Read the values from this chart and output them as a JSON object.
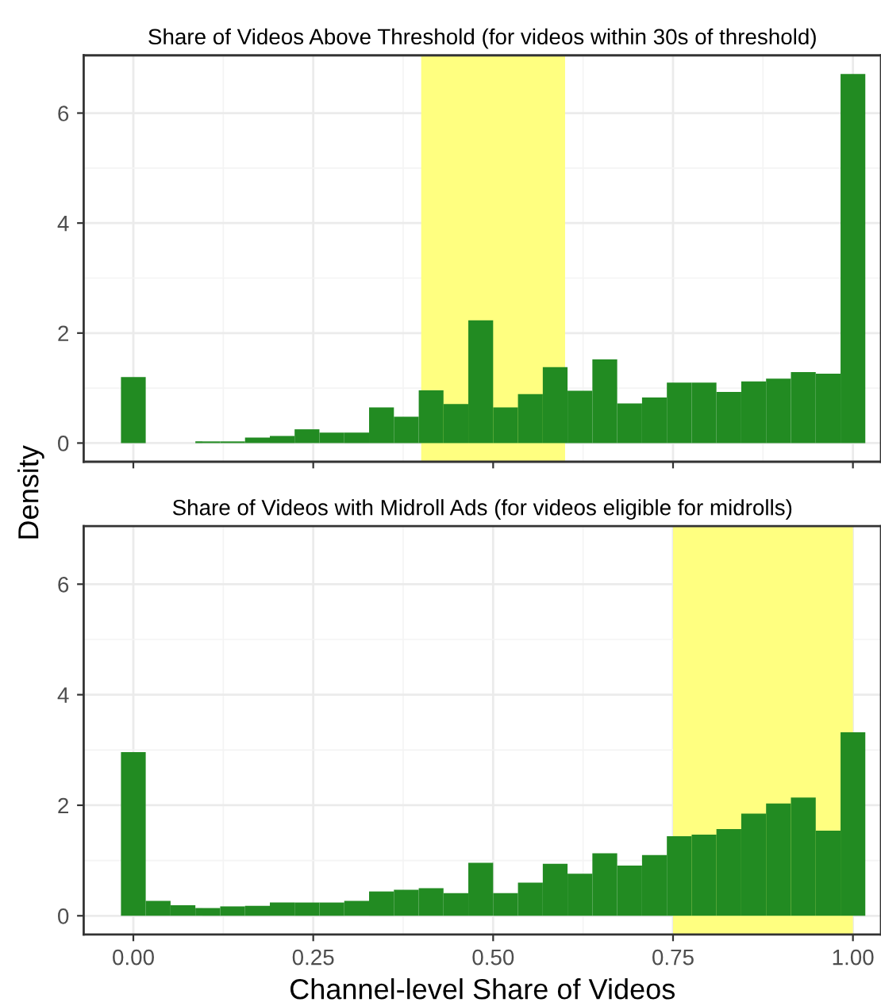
{
  "chart_data": [
    {
      "type": "histogram",
      "title": "Share of Videos Above Threshold (for videos within 30s of threshold)",
      "ylabel": "Density",
      "bins": [
        -0.0172,
        0.0172,
        0.0517,
        0.0862,
        0.1207,
        0.1552,
        0.1897,
        0.2241,
        0.2586,
        0.2931,
        0.3276,
        0.3621,
        0.3966,
        0.431,
        0.4655,
        0.5,
        0.5345,
        0.569,
        0.6034,
        0.6379,
        0.6724,
        0.7069,
        0.7414,
        0.7759,
        0.8103,
        0.8448,
        0.8793,
        0.9138,
        0.9483,
        0.9828,
        1.0172
      ],
      "values": [
        1.2,
        0,
        0,
        0.03,
        0.03,
        0.1,
        0.13,
        0.25,
        0.19,
        0.19,
        0.65,
        0.48,
        0.96,
        0.71,
        2.23,
        0.65,
        0.89,
        1.38,
        0.95,
        1.52,
        0.72,
        0.83,
        1.1,
        1.1,
        0.93,
        1.12,
        1.17,
        1.29,
        1.26,
        6.71
      ],
      "color": "#228b22",
      "bands": [
        {
          "axis": "x",
          "from": 0.4,
          "to": 0.6,
          "color": "#ffff80"
        }
      ],
      "xlim": [
        -0.069,
        1.039
      ],
      "ylim": [
        -0.34,
        7.05
      ],
      "xticks": [
        {
          "value": 0,
          "label": null
        },
        {
          "value": 0.25,
          "label": null
        },
        {
          "value": 0.5,
          "label": null
        },
        {
          "value": 0.75,
          "label": null
        },
        {
          "value": 1,
          "label": null
        }
      ],
      "yticks": [
        0,
        2,
        4,
        6
      ],
      "tick_labels": "y",
      "grid": true
    },
    {
      "type": "histogram",
      "title": "Share of Videos with Midroll Ads (for videos eligible for midrolls)",
      "xlabel": "Channel-level Share of Videos",
      "bins": [
        -0.0172,
        0.0172,
        0.0517,
        0.0862,
        0.1207,
        0.1552,
        0.1897,
        0.2241,
        0.2586,
        0.2931,
        0.3276,
        0.3621,
        0.3966,
        0.431,
        0.4655,
        0.5,
        0.5345,
        0.569,
        0.6034,
        0.6379,
        0.6724,
        0.7069,
        0.7414,
        0.7759,
        0.8103,
        0.8448,
        0.8793,
        0.9138,
        0.9483,
        0.9828,
        1.0172
      ],
      "values": [
        2.96,
        0.27,
        0.19,
        0.14,
        0.17,
        0.18,
        0.24,
        0.24,
        0.24,
        0.27,
        0.44,
        0.47,
        0.5,
        0.41,
        0.96,
        0.41,
        0.6,
        0.94,
        0.76,
        1.13,
        0.91,
        1.1,
        1.44,
        1.47,
        1.57,
        1.85,
        2.03,
        2.14,
        1.54,
        3.32
      ],
      "color": "#228b22",
      "bands": [
        {
          "axis": "x",
          "from": 0.75,
          "to": 1.0,
          "color": "#ffff80"
        }
      ],
      "xlim": [
        -0.069,
        1.039
      ],
      "ylim": [
        -0.34,
        7.05
      ],
      "xticks": [
        {
          "value": 0,
          "label": "0.00"
        },
        {
          "value": 0.25,
          "label": "0.25"
        },
        {
          "value": 0.5,
          "label": "0.50"
        },
        {
          "value": 0.75,
          "label": "0.75"
        },
        {
          "value": 1,
          "label": "1.00"
        }
      ],
      "yticks": [
        0,
        2,
        4,
        6
      ],
      "grid": true
    }
  ]
}
